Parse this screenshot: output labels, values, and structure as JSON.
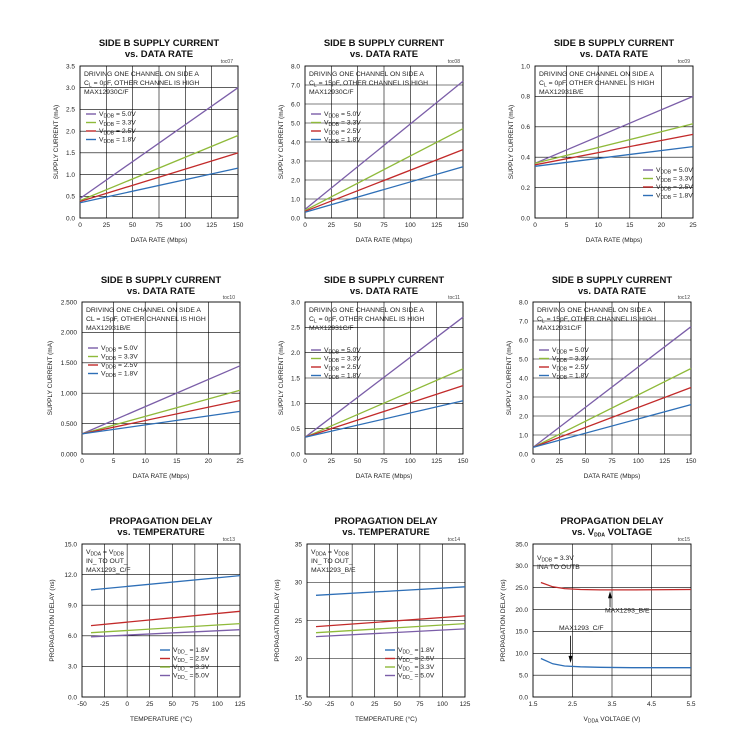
{
  "colors": {
    "v50": "#7b5ea8",
    "v33": "#8fba3a",
    "v25": "#c22a2a",
    "v18": "#2e6fb7",
    "axis": "#000000",
    "grid": "#000000"
  },
  "charts": [
    {
      "chart_data": {
        "type": "line",
        "title": "SIDE B SUPPLY CURRENT",
        "subtitle": "vs. DATA RATE",
        "toc": "toc07",
        "xlabel": "DATA RATE (Mbps)",
        "ylabel": "SUPPLY CURRENT (mA)",
        "xlim": [
          0,
          150
        ],
        "ylim": [
          0,
          3.5
        ],
        "xticks": [
          0,
          25,
          50,
          75,
          100,
          125,
          150
        ],
        "yticks": [
          0,
          0.5,
          1.0,
          1.5,
          2.0,
          2.5,
          3.0,
          3.5
        ],
        "ytick_labels": [
          "0.0",
          "0.5",
          "1.0",
          "1.5",
          "2.0",
          "2.5",
          "3.0",
          "3.5"
        ],
        "annotations": [
          "DRIVING ONE CHANNEL ON SIDE A",
          "C_L = 0pF, OTHER CHANNEL IS HIGH",
          "MAX12930C/F"
        ],
        "legend": [
          "V_DDB = 5.0V",
          "V_DDB = 3.3V",
          "V_DDB = 2.5V",
          "V_DDB = 1.8V"
        ],
        "series": [
          {
            "name": "VDDB = 5.0V",
            "x": [
              0,
              150
            ],
            "y": [
              0.45,
              3.0
            ]
          },
          {
            "name": "VDDB = 3.3V",
            "x": [
              0,
              150
            ],
            "y": [
              0.4,
              1.9
            ]
          },
          {
            "name": "VDDB = 2.5V",
            "x": [
              0,
              150
            ],
            "y": [
              0.38,
              1.5
            ]
          },
          {
            "name": "VDDB = 1.8V",
            "x": [
              0,
              150
            ],
            "y": [
              0.35,
              1.15
            ]
          }
        ]
      }
    },
    {
      "chart_data": {
        "type": "line",
        "title": "SIDE B SUPPLY CURRENT",
        "subtitle": "vs. DATA RATE",
        "toc": "toc08",
        "xlabel": "DATA RATE (Mbps)",
        "ylabel": "SUPPLY CURRENT (mA)",
        "xlim": [
          0,
          150
        ],
        "ylim": [
          0,
          8
        ],
        "xticks": [
          0,
          25,
          50,
          75,
          100,
          125,
          150
        ],
        "yticks": [
          0,
          1,
          2,
          3,
          4,
          5,
          6,
          7,
          8
        ],
        "ytick_labels": [
          "0.0",
          "1.0",
          "2.0",
          "3.0",
          "4.0",
          "5.0",
          "6.0",
          "7.0",
          "8.0"
        ],
        "annotations": [
          "DRIVING ONE CHANNEL ON SIDE A",
          "C_L = 15pF, OTHER CHANNEL IS HIGH",
          "MAX12930C/F"
        ],
        "legend": [
          "V_DDB = 5.0V",
          "V_DDB = 3.3V",
          "V_DDB = 2.5V",
          "V_DDB = 1.8V"
        ],
        "series": [
          {
            "name": "VDDB = 5.0V",
            "x": [
              0,
              150
            ],
            "y": [
              0.45,
              7.2
            ]
          },
          {
            "name": "VDDB = 3.3V",
            "x": [
              0,
              150
            ],
            "y": [
              0.4,
              4.7
            ]
          },
          {
            "name": "VDDB = 2.5V",
            "x": [
              0,
              150
            ],
            "y": [
              0.35,
              3.6
            ]
          },
          {
            "name": "VDDB = 1.8V",
            "x": [
              0,
              150
            ],
            "y": [
              0.3,
              2.7
            ]
          }
        ]
      }
    },
    {
      "chart_data": {
        "type": "line",
        "title": "SIDE B SUPPLY CURRENT",
        "subtitle": "vs. DATA RATE",
        "toc": "toc09",
        "xlabel": "DATA RATE (Mbps)",
        "ylabel": "SUPPLY CURRENT (mA)",
        "xlim": [
          0,
          25
        ],
        "ylim": [
          0,
          1.0
        ],
        "xticks": [
          0,
          5,
          10,
          15,
          20,
          25
        ],
        "yticks": [
          0,
          0.2,
          0.4,
          0.6,
          0.8,
          1.0
        ],
        "ytick_labels": [
          "0.0",
          "0.2",
          "0.4",
          "0.6",
          "0.8",
          "1.0"
        ],
        "annotations": [
          "DRIVING ONE CHANNEL ON SIDE A",
          "C_L = 0pF, OTHER CHANNEL IS HIGH",
          "MAX12931B/E"
        ],
        "legend": [
          "V_DDB = 5.0V",
          "V_DDB = 3.3V",
          "V_DDB = 2.5V",
          "V_DDB = 1.8V"
        ],
        "series": [
          {
            "name": "VDDB = 5.0V",
            "x": [
              0,
              25
            ],
            "y": [
              0.36,
              0.8
            ]
          },
          {
            "name": "VDDB = 3.3V",
            "x": [
              0,
              25
            ],
            "y": [
              0.36,
              0.62
            ]
          },
          {
            "name": "VDDB = 2.5V",
            "x": [
              0,
              25
            ],
            "y": [
              0.35,
              0.55
            ]
          },
          {
            "name": "VDDB = 1.8V",
            "x": [
              0,
              25
            ],
            "y": [
              0.34,
              0.47
            ]
          }
        ]
      }
    },
    {
      "chart_data": {
        "type": "line",
        "title": "SIDE B SUPPLY CURRENT",
        "subtitle": "vs. DATA RATE",
        "toc": "toc10",
        "xlabel": "DATA RATE (Mbps)",
        "ylabel": "SUPPLY CURRENT (mA)",
        "xlim": [
          0,
          25
        ],
        "ylim": [
          0,
          2.5
        ],
        "xticks": [
          0,
          5,
          10,
          15,
          20,
          25
        ],
        "yticks": [
          0,
          0.5,
          1.0,
          1.5,
          2.0,
          2.5
        ],
        "ytick_labels": [
          "0.000",
          "0.500",
          "1.000",
          "1.500",
          "2.000",
          "2.500"
        ],
        "annotations": [
          "DRIVING ONE CHANNEL ON SIDE A",
          "CL = 15pF, OTHER CHANNEL IS HIGH",
          "MAX12931B/E"
        ],
        "legend": [
          "V_DDB = 5.0V",
          "V_DDB = 3.3V",
          "V_DDB = 2.5V",
          "V_DDB = 1.8V"
        ],
        "series": [
          {
            "name": "VDDB = 5.0V",
            "x": [
              0,
              25
            ],
            "y": [
              0.33,
              1.45
            ]
          },
          {
            "name": "VDDB = 3.3V",
            "x": [
              0,
              25
            ],
            "y": [
              0.33,
              1.05
            ]
          },
          {
            "name": "VDDB = 2.5V",
            "x": [
              0,
              25
            ],
            "y": [
              0.33,
              0.88
            ]
          },
          {
            "name": "VDDB = 1.8V",
            "x": [
              0,
              25
            ],
            "y": [
              0.33,
              0.7
            ]
          }
        ]
      }
    },
    {
      "chart_data": {
        "type": "line",
        "title": "SIDE B SUPPLY CURRENT",
        "subtitle": "vs. DATA RATE",
        "toc": "toc11",
        "xlabel": "DATA RATE (Mbps)",
        "ylabel": "SUPPLY CURRENT (mA)",
        "xlim": [
          0,
          150
        ],
        "ylim": [
          0,
          3.0
        ],
        "xticks": [
          0,
          25,
          50,
          75,
          100,
          125,
          150
        ],
        "yticks": [
          0,
          0.5,
          1.0,
          1.5,
          2.0,
          2.5,
          3.0
        ],
        "ytick_labels": [
          "0.0",
          "0.5",
          "1.0",
          "1.5",
          "2.0",
          "2.5",
          "3.0"
        ],
        "annotations": [
          "DRIVING ONE CHANNEL ON SIDE A",
          "C_L = 0pF, OTHER CHANNEL IS HIGH",
          "MAX12931C/F"
        ],
        "legend": [
          "V_DDB = 5.0V",
          "V_DDB = 3.3V",
          "V_DDB = 2.5V",
          "V_DDB = 1.8V"
        ],
        "series": [
          {
            "name": "VDDB = 5.0V",
            "x": [
              0,
              150
            ],
            "y": [
              0.33,
              2.7
            ]
          },
          {
            "name": "VDDB = 3.3V",
            "x": [
              0,
              150
            ],
            "y": [
              0.33,
              1.68
            ]
          },
          {
            "name": "VDDB = 2.5V",
            "x": [
              0,
              150
            ],
            "y": [
              0.33,
              1.35
            ]
          },
          {
            "name": "VDDB = 1.8V",
            "x": [
              0,
              150
            ],
            "y": [
              0.33,
              1.05
            ]
          }
        ]
      }
    },
    {
      "chart_data": {
        "type": "line",
        "title": "SIDE B SUPPLY CURRENT",
        "subtitle": "vs. DATA RATE",
        "toc": "toc12",
        "xlabel": "DATA RATE (Mbps)",
        "ylabel": "SUPPLY CURRENT (mA)",
        "xlim": [
          0,
          150
        ],
        "ylim": [
          0,
          8
        ],
        "xticks": [
          0,
          25,
          50,
          75,
          100,
          125,
          150
        ],
        "yticks": [
          0,
          1,
          2,
          3,
          4,
          5,
          6,
          7,
          8
        ],
        "ytick_labels": [
          "0.0",
          "1.0",
          "2.0",
          "3.0",
          "4.0",
          "5.0",
          "6.0",
          "7.0",
          "8.0"
        ],
        "annotations": [
          "DRIVING ONE CHANNEL ON SIDE A",
          "C_L = 15pF, OTHER CHANNEL IS HIGH",
          "MAX12931C/F"
        ],
        "legend": [
          "V_DDB = 5.0V",
          "V_DDB = 3.3V",
          "V_DDB = 2.5V",
          "V_DDB = 1.8V"
        ],
        "series": [
          {
            "name": "VDDB = 5.0V",
            "x": [
              0,
              150
            ],
            "y": [
              0.35,
              6.7
            ]
          },
          {
            "name": "VDDB = 3.3V",
            "x": [
              0,
              150
            ],
            "y": [
              0.35,
              4.5
            ]
          },
          {
            "name": "VDDB = 2.5V",
            "x": [
              0,
              150
            ],
            "y": [
              0.35,
              3.5
            ]
          },
          {
            "name": "VDDB = 1.8V",
            "x": [
              0,
              150
            ],
            "y": [
              0.35,
              2.6
            ]
          }
        ]
      }
    },
    {
      "chart_data": {
        "type": "line",
        "title": "PROPAGATION DELAY",
        "subtitle": "vs. TEMPERATURE",
        "toc": "toc13",
        "xlabel": "TEMPERATURE (°C)",
        "ylabel": "PROPAGATION DELAY (ns)",
        "xlim": [
          -50,
          125
        ],
        "ylim": [
          0,
          15
        ],
        "xticks": [
          -50,
          -25,
          0,
          25,
          50,
          75,
          100,
          125
        ],
        "yticks": [
          0,
          3,
          6,
          9,
          12,
          15
        ],
        "ytick_labels": [
          "0.0",
          "3.0",
          "6.0",
          "9.0",
          "12.0",
          "15.0"
        ],
        "annotations": [
          "V_DDA = V_DDB",
          "IN_ TO OUT_",
          "MAX1293_C/F"
        ],
        "legend": [
          "V_DD_ = 1.8V",
          "V_DD_ = 2.5V",
          "V_DD_ = 3.3V",
          "V_DD_ = 5.0V"
        ],
        "series": [
          {
            "name": "VDD_ = 1.8V",
            "x": [
              -40,
              125
            ],
            "y": [
              10.5,
              11.9
            ]
          },
          {
            "name": "VDD_ = 2.5V",
            "x": [
              -40,
              125
            ],
            "y": [
              7.0,
              8.4
            ]
          },
          {
            "name": "VDD_ = 3.3V",
            "x": [
              -40,
              125
            ],
            "y": [
              6.3,
              7.2
            ]
          },
          {
            "name": "VDD_ = 5.0V",
            "x": [
              -40,
              125
            ],
            "y": [
              5.9,
              6.6
            ]
          }
        ]
      }
    },
    {
      "chart_data": {
        "type": "line",
        "title": "PROPAGATION DELAY",
        "subtitle": "vs. TEMPERATURE",
        "toc": "toc14",
        "xlabel": "TEMPERATURE (°C)",
        "ylabel": "PROPAGATION DELAY (ns)",
        "xlim": [
          -50,
          125
        ],
        "ylim": [
          15,
          35
        ],
        "xticks": [
          -50,
          -25,
          0,
          25,
          50,
          75,
          100,
          125
        ],
        "yticks": [
          15,
          20,
          25,
          30,
          35
        ],
        "ytick_labels": [
          "15",
          "20",
          "25",
          "30",
          "35"
        ],
        "annotations": [
          "V_DDA = V_DDB",
          "IN_ TO OUT_",
          "MAX1293_B/E"
        ],
        "legend": [
          "V_DD_ = 1.8V",
          "V_DD_ = 2.5V",
          "V_DD_ = 3.3V",
          "V_DD_ = 5.0V"
        ],
        "series": [
          {
            "name": "VDD_ = 1.8V",
            "x": [
              -40,
              125
            ],
            "y": [
              28.3,
              29.4
            ]
          },
          {
            "name": "VDD_ = 2.5V",
            "x": [
              -40,
              125
            ],
            "y": [
              24.2,
              25.6
            ]
          },
          {
            "name": "VDD_ = 3.3V",
            "x": [
              -40,
              125
            ],
            "y": [
              23.4,
              24.6
            ]
          },
          {
            "name": "VDD_ = 5.0V",
            "x": [
              -40,
              125
            ],
            "y": [
              22.9,
              23.9
            ]
          }
        ]
      }
    },
    {
      "chart_data": {
        "type": "line",
        "title": "PROPAGATION DELAY",
        "subtitle": "vs. V_DDA VOLTAGE",
        "toc": "toc15",
        "xlabel": "V_DDA VOLTAGE (V)",
        "ylabel": "PROPAGATION DELAY (ns)",
        "xlim": [
          1.5,
          5.5
        ],
        "ylim": [
          0,
          35
        ],
        "xticks": [
          1.5,
          2.5,
          3.5,
          4.5,
          5.5
        ],
        "xtick_labels": [
          "1.5",
          "2.5",
          "3.5",
          "4.5",
          "5.5"
        ],
        "yticks": [
          0,
          5,
          10,
          15,
          20,
          25,
          30,
          35
        ],
        "ytick_labels": [
          "0.0",
          "5.0",
          "10.0",
          "15.0",
          "20.0",
          "25.0",
          "30.0",
          "35.0"
        ],
        "annotations": [
          "V_DDB = 3.3V",
          "INA TO OUTB",
          "MAX1293_B/E",
          "MAX1293_C/F"
        ],
        "series": [
          {
            "name": "MAX1293_B/E",
            "x": [
              1.7,
              2.0,
              2.3,
              2.7,
              3.2,
              4.0,
              5.5
            ],
            "y": [
              26.2,
              25.2,
              24.8,
              24.6,
              24.5,
              24.5,
              24.6
            ]
          },
          {
            "name": "MAX1293_C/F",
            "x": [
              1.7,
              2.0,
              2.3,
              2.7,
              3.2,
              4.0,
              5.5
            ],
            "y": [
              8.8,
              7.6,
              7.1,
              6.9,
              6.8,
              6.7,
              6.7
            ]
          }
        ]
      }
    }
  ]
}
